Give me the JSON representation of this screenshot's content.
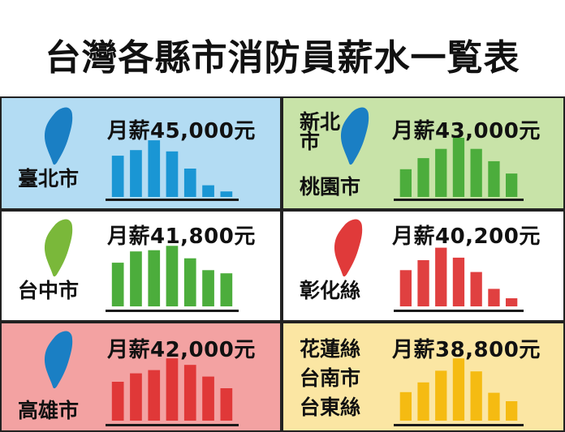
{
  "title": "台灣各縣市消防員薪水一覧表",
  "chart_data": [
    {
      "type": "bar",
      "region": [
        "臺北市"
      ],
      "salary_label": "月薪45,000元",
      "monthly_salary": 45000,
      "color": "#1a96d4",
      "background": "#b3dcf3",
      "map_color": "#1a7fc4",
      "values": [
        0.67,
        0.76,
        0.92,
        0.74,
        0.46,
        0.19,
        0.09
      ]
    },
    {
      "type": "bar",
      "region": [
        "新北",
        "市",
        "桃園市"
      ],
      "salary_label": "月薪43,000元",
      "monthly_salary": 43000,
      "color": "#4cad3c",
      "background": "#c8e3a8",
      "map_color": "#1a7fc4",
      "values": [
        0.45,
        0.63,
        0.78,
        0.96,
        0.78,
        0.58,
        0.38
      ]
    },
    {
      "type": "bar",
      "region": [
        "台中市"
      ],
      "salary_label": "月薪41,800元",
      "monthly_salary": 41800,
      "color": "#4cad3c",
      "background": "#ffffff",
      "map_color": "#7ab83a",
      "values": [
        0.7,
        0.88,
        0.9,
        0.97,
        0.77,
        0.58,
        0.53
      ]
    },
    {
      "type": "bar",
      "region": [
        "彰化絲"
      ],
      "salary_label": "月薪40,200元",
      "monthly_salary": 40200,
      "color": "#e04040",
      "background": "#ffffff",
      "map_color": "#e03a3a",
      "values": [
        0.58,
        0.74,
        0.94,
        0.78,
        0.55,
        0.28,
        0.13
      ]
    },
    {
      "type": "bar",
      "region": [
        "高雄市"
      ],
      "salary_label": "月薪42,000元",
      "monthly_salary": 42000,
      "color": "#e03838",
      "background": "#f3a2a2",
      "map_color": "#1a7fc4",
      "values": [
        0.6,
        0.73,
        0.78,
        0.96,
        0.86,
        0.68,
        0.5
      ]
    },
    {
      "type": "bar",
      "region": [
        "花蓮絲",
        "台南市",
        "台東絲"
      ],
      "salary_label": "月薪38,800元",
      "monthly_salary": 38800,
      "color": "#f5bb12",
      "background": "#fbe6a3",
      "map_color": "",
      "values": [
        0.44,
        0.59,
        0.77,
        0.96,
        0.76,
        0.43,
        0.3
      ]
    }
  ]
}
